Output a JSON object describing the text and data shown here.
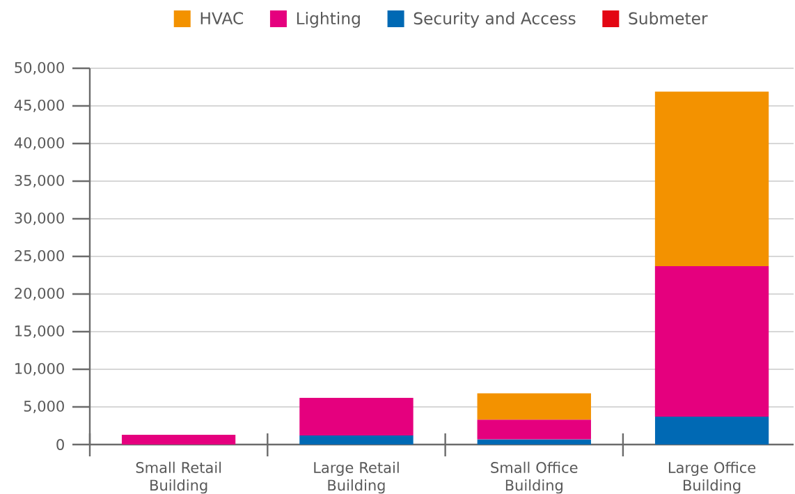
{
  "chart_data": {
    "type": "bar",
    "stacked": true,
    "categories": [
      "Small Retail Building",
      "Large Retail Building",
      "Small Office Building",
      "Large Office Building"
    ],
    "series": [
      {
        "name": "Submeter",
        "color": "#e30613",
        "values": [
          null,
          null,
          null,
          null
        ]
      },
      {
        "name": "Security and Access",
        "color": "#0069b4",
        "values": [
          null,
          1200,
          700,
          3700
        ]
      },
      {
        "name": "Lighting",
        "color": "#e5007e",
        "values": [
          1300,
          5000,
          2600,
          20000
        ]
      },
      {
        "name": "HVAC",
        "color": "#f39200",
        "values": [
          null,
          null,
          3500,
          23200
        ]
      }
    ],
    "ylim": [
      0,
      50000
    ],
    "yticks": [
      0,
      {
        "value": 5000,
        "label": "5,000"
      },
      {
        "value": 10000,
        "label": "10,000"
      },
      {
        "value": 15000,
        "label": "15,000"
      },
      {
        "value": 20000,
        "label": "20,000"
      },
      {
        "value": 25000,
        "label": "25,000"
      },
      {
        "value": 30000,
        "label": "30,000"
      },
      {
        "value": 35000,
        "label": "35,000"
      },
      {
        "value": 40000,
        "label": "40,000"
      },
      {
        "value": 45000,
        "label": "45,000"
      },
      {
        "value": 50000,
        "label": "50,000"
      }
    ],
    "grid": "y",
    "legend": "top"
  }
}
